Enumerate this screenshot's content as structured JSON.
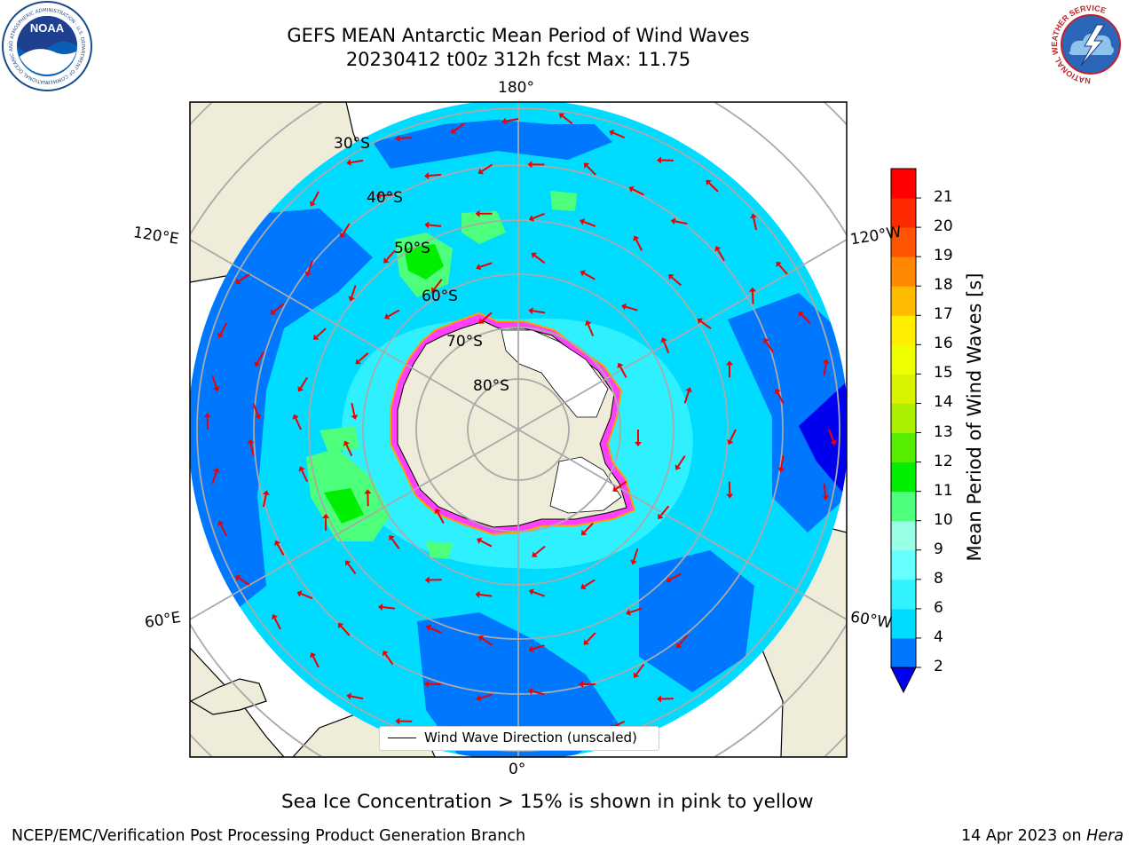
{
  "header": {
    "title_line1": "GEFS MEAN Antarctic Mean Period of Wind Waves",
    "title_line2": "20230412 t00z 312h fcst   Max: 11.75"
  },
  "map": {
    "projection": "south polar stereographic",
    "longitude_labels": {
      "top": "180°",
      "bottom": "0°",
      "upper_left": "120°E",
      "lower_left": "60°E",
      "upper_right": "120°W",
      "lower_right": "60°W"
    },
    "latitude_labels": [
      "30°S",
      "40°S",
      "50°S",
      "60°S",
      "70°S",
      "80°S"
    ],
    "legend_label": "Wind Wave Direction (unscaled)",
    "arrow_color": "#ee0000",
    "land_color": "#efecda",
    "ice_edge_colors": [
      "#ff40ff",
      "#ff9f00"
    ]
  },
  "colorbar": {
    "label": "Mean Period of Wind Waves [s]",
    "ticks": [
      "2",
      "4",
      "6",
      "8",
      "9",
      "10",
      "11",
      "12",
      "13",
      "14",
      "15",
      "16",
      "17",
      "18",
      "19",
      "20",
      "21"
    ],
    "colors": [
      "#0077ff",
      "#00dcff",
      "#33f2ff",
      "#66ffff",
      "#99ffe6",
      "#4dff7a",
      "#00ee00",
      "#55ee00",
      "#aaee00",
      "#d8f200",
      "#eeff00",
      "#ffee00",
      "#ffbb00",
      "#ff8800",
      "#ff5500",
      "#ff2a00",
      "#ff0000"
    ],
    "under_color": "#0000ee"
  },
  "note": "Sea Ice Concentration > 15% is shown in pink to yellow",
  "footer": {
    "left": "NCEP/EMC/Verification Post Processing Product Generation Branch",
    "right_date": "14 Apr 2023 on ",
    "right_machine": "Hera"
  },
  "logos": {
    "noaa_text": "NOAA",
    "noaa_ring": "NATIONAL OCEANIC AND ATMOSPHERIC ADMINISTRATION · U.S. DEPARTMENT OF COMMERCE",
    "nws_ring": "NATIONAL WEATHER SERVICE"
  }
}
